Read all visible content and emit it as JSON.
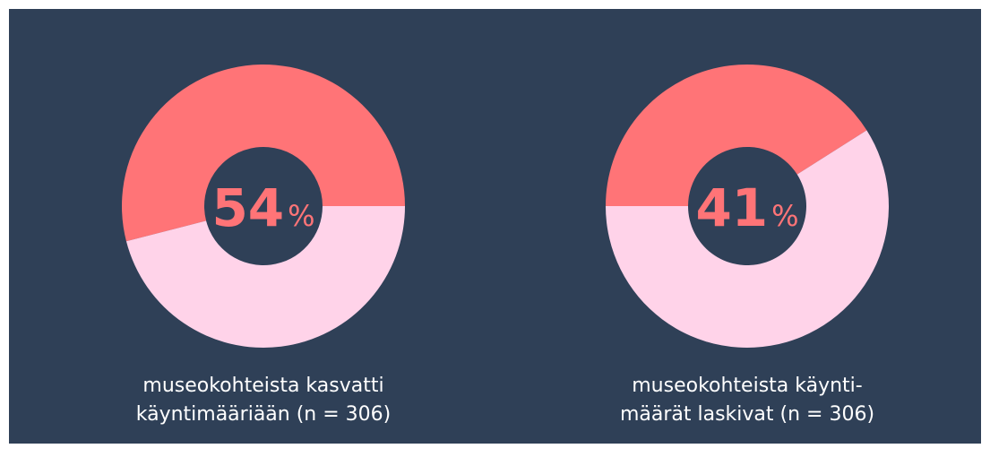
{
  "chart_data": [
    {
      "type": "donut",
      "values": [
        54,
        46
      ],
      "unit": "%",
      "colors": [
        "#ff7477",
        "#ffd3e9"
      ],
      "caption": [
        "museokohteista kasvatti",
        "käyntimääriään (n = 306)"
      ]
    },
    {
      "type": "donut",
      "values": [
        41,
        59
      ],
      "unit": "%",
      "colors": [
        "#ff7477",
        "#ffd3e9"
      ],
      "caption": [
        "museokohteista käynti-",
        "määrät laskivat (n = 306)"
      ]
    }
  ]
}
